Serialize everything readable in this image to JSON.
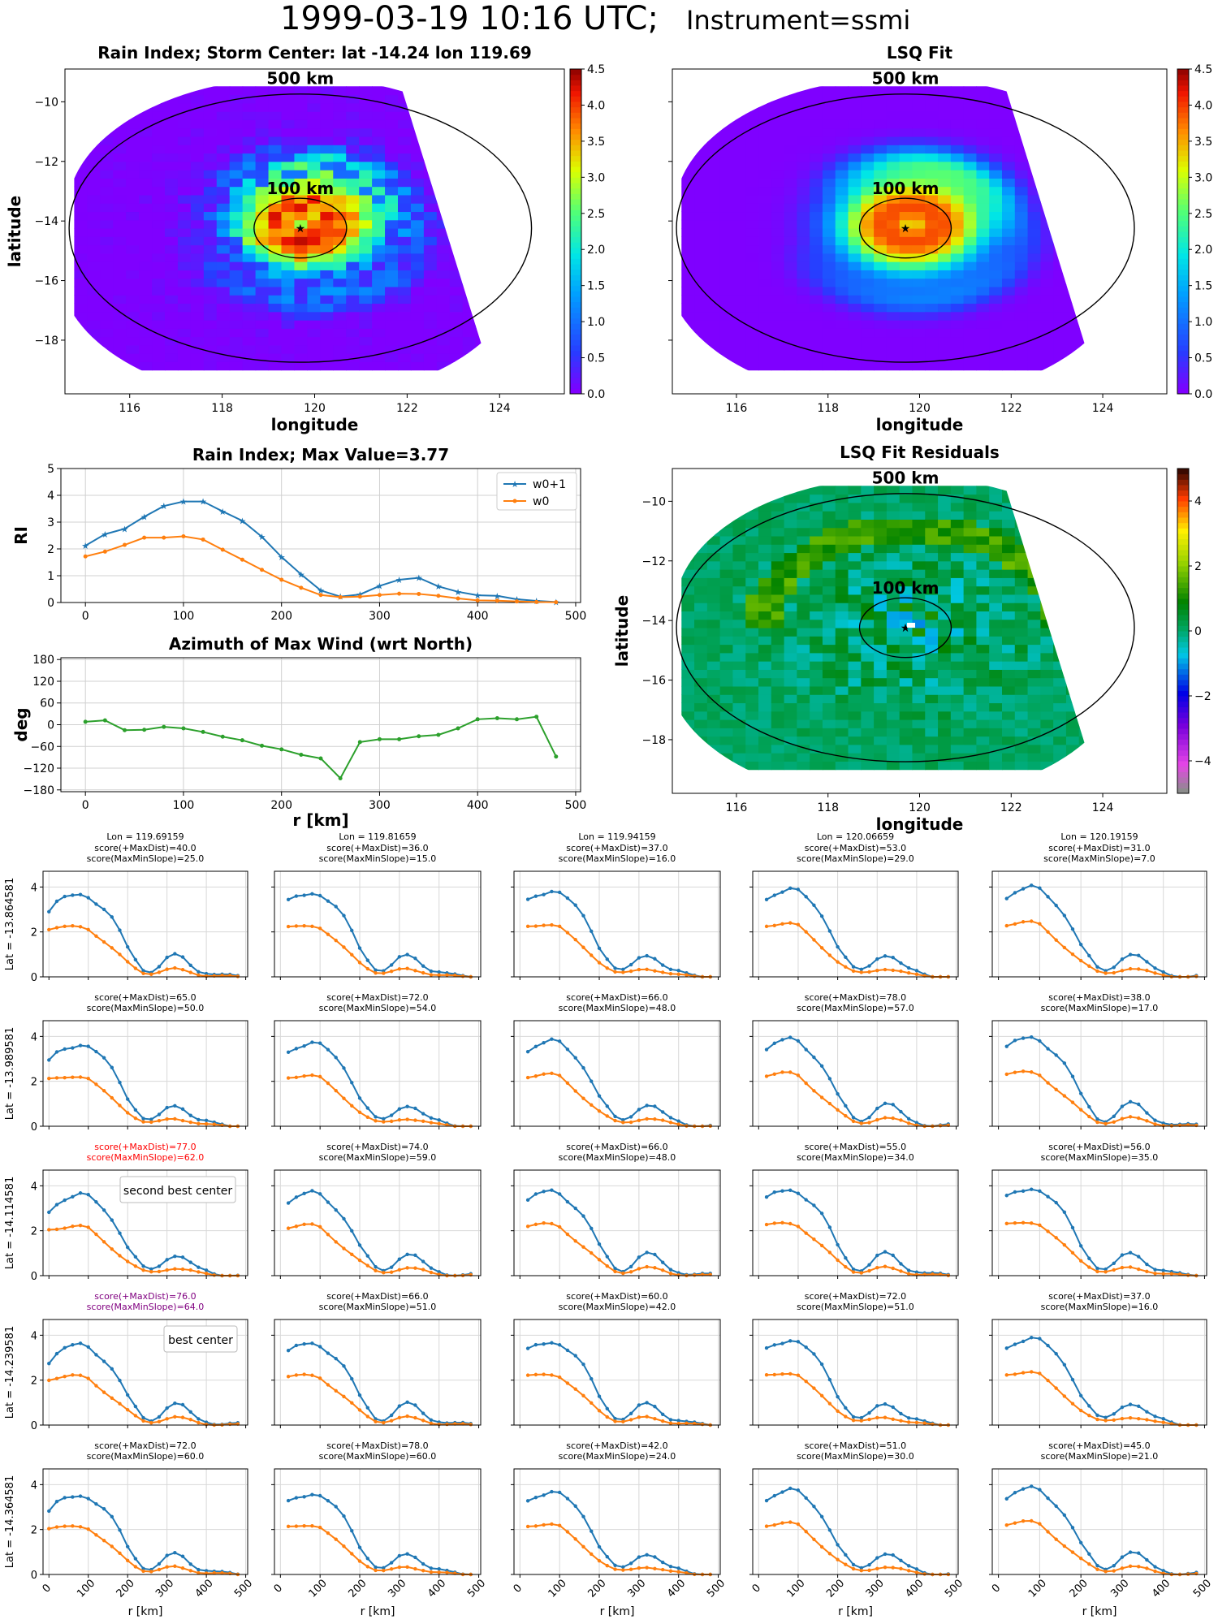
{
  "figure": {
    "title_main": "1999-03-19 10:16 UTC;",
    "title_instrument": "Instrument=ssmi"
  },
  "colors": {
    "series_w0p1": "#1f77b4",
    "series_w0": "#ff7f0e",
    "azimuth": "#2ca02c",
    "best_center": "#800080",
    "second_best_center": "#ff0000"
  },
  "maps": [
    {
      "title": "Rain Index; Storm Center: lat -14.24 lon 119.69",
      "xlabel": "longitude",
      "ylabel": "latitude",
      "colormap": "jet",
      "colorbar_range": [
        0,
        4.5
      ],
      "colorbar_ticks": [
        "0.0",
        "0.5",
        "1.0",
        "1.5",
        "2.0",
        "2.5",
        "3.0",
        "3.5",
        "4.0",
        "4.5"
      ],
      "xticks": [
        "116",
        "118",
        "120",
        "122",
        "124"
      ],
      "yticks": [
        "−10",
        "−12",
        "−14",
        "−16",
        "−18"
      ],
      "ring_labels": [
        "500 km",
        "100 km"
      ],
      "storm_center": {
        "lon": 119.69,
        "lat": -14.24
      }
    },
    {
      "title": "LSQ Fit",
      "xlabel": "longitude",
      "ylabel": "",
      "colormap": "jet",
      "colorbar_range": [
        0,
        4.5
      ],
      "colorbar_ticks": [
        "0.0",
        "0.5",
        "1.0",
        "1.5",
        "2.0",
        "2.5",
        "3.0",
        "3.5",
        "4.0",
        "4.5"
      ],
      "xticks": [
        "116",
        "118",
        "120",
        "122",
        "124"
      ],
      "yticks": [
        "",
        "",
        "",
        "",
        ""
      ],
      "ring_labels": [
        "500 km",
        "100 km"
      ]
    },
    {
      "title": "LSQ Fit Residuals",
      "xlabel": "longitude",
      "ylabel": "latitude",
      "colormap": "spectral",
      "colorbar_range": [
        -5,
        5
      ],
      "colorbar_ticks": [
        "4",
        "2",
        "0",
        "−2",
        "−4"
      ],
      "xticks": [
        "116",
        "118",
        "120",
        "122",
        "124"
      ],
      "yticks": [
        "−10",
        "−12",
        "−14",
        "−16",
        "−18"
      ],
      "ring_labels": [
        "500 km",
        "100 km"
      ]
    }
  ],
  "chart_data": [
    {
      "type": "line",
      "title": "Rain Index; Max Value=3.77",
      "xlabel": "",
      "ylabel": "RI",
      "xlim": [
        -25,
        505
      ],
      "ylim": [
        0,
        5
      ],
      "xticks": [
        "0",
        "100",
        "200",
        "300",
        "400",
        "500"
      ],
      "yticks": [
        "0",
        "1",
        "2",
        "3",
        "4",
        "5"
      ],
      "legend_placement": "top-right",
      "x": [
        0,
        20,
        40,
        60,
        80,
        100,
        120,
        140,
        160,
        180,
        200,
        220,
        240,
        260,
        280,
        300,
        320,
        340,
        360,
        380,
        400,
        420,
        440,
        460,
        480
      ],
      "series": [
        {
          "name": "w0+1",
          "values": [
            2.12,
            2.55,
            2.75,
            3.2,
            3.6,
            3.77,
            3.77,
            3.4,
            3.05,
            2.45,
            1.7,
            1.05,
            0.45,
            0.22,
            0.3,
            0.62,
            0.85,
            0.92,
            0.6,
            0.4,
            0.27,
            0.25,
            0.12,
            0.06,
            0.02
          ]
        },
        {
          "name": "w0",
          "values": [
            1.72,
            1.9,
            2.15,
            2.42,
            2.42,
            2.47,
            2.35,
            1.97,
            1.6,
            1.22,
            0.85,
            0.55,
            0.28,
            0.2,
            0.22,
            0.28,
            0.33,
            0.32,
            0.25,
            0.15,
            0.08,
            0.07,
            0.04,
            0.02,
            0.01
          ]
        }
      ]
    },
    {
      "type": "line",
      "title": "Azimuth of Max Wind (wrt North)",
      "xlabel": "r [km]",
      "ylabel": "deg",
      "xlim": [
        -25,
        505
      ],
      "ylim": [
        -185,
        185
      ],
      "xticks": [
        "0",
        "100",
        "200",
        "300",
        "400",
        "500"
      ],
      "yticks": [
        "180",
        "120",
        "60",
        "0",
        "−60",
        "−120",
        "−180"
      ],
      "x": [
        0,
        20,
        40,
        60,
        80,
        100,
        120,
        140,
        160,
        180,
        200,
        220,
        240,
        260,
        280,
        300,
        320,
        340,
        360,
        380,
        400,
        420,
        440,
        460,
        480
      ],
      "values": [
        8,
        12,
        -15,
        -14,
        -6,
        -10,
        -20,
        -33,
        -43,
        -58,
        -68,
        -83,
        -93,
        -148,
        -48,
        -40,
        -40,
        -32,
        -28,
        -10,
        15,
        18,
        15,
        22,
        -88
      ]
    },
    {
      "type": "line",
      "grid": {
        "rows": 5,
        "cols": 5
      },
      "xlabel": "r [km]",
      "ylim": [
        0,
        4.7
      ],
      "xlim": [
        -15,
        505
      ],
      "xticks": [
        "0",
        "100",
        "200",
        "300",
        "400",
        "500"
      ],
      "yticks": [
        "0",
        "2",
        "4"
      ],
      "column_headers": [
        "Lon = 119.69159",
        "Lon = 119.81659",
        "Lon = 119.94159",
        "Lon = 120.06659",
        "Lon = 120.19159"
      ],
      "row_labels": [
        "Lat = -13.864581",
        "Lat = -13.989581",
        "Lat = -14.114581",
        "Lat = -14.239581",
        "Lat = -14.364581"
      ],
      "scores": [
        [
          [
            "score(+MaxDist)=40.0",
            "score(MaxMinSlope)=25.0"
          ],
          [
            "score(+MaxDist)=36.0",
            "score(MaxMinSlope)=15.0"
          ],
          [
            "score(+MaxDist)=37.0",
            "score(MaxMinSlope)=16.0"
          ],
          [
            "score(+MaxDist)=53.0",
            "score(MaxMinSlope)=29.0"
          ],
          [
            "score(+MaxDist)=31.0",
            "score(MaxMinSlope)=7.0"
          ]
        ],
        [
          [
            "score(+MaxDist)=65.0",
            "score(MaxMinSlope)=50.0"
          ],
          [
            "score(+MaxDist)=72.0",
            "score(MaxMinSlope)=54.0"
          ],
          [
            "score(+MaxDist)=66.0",
            "score(MaxMinSlope)=48.0"
          ],
          [
            "score(+MaxDist)=78.0",
            "score(MaxMinSlope)=57.0"
          ],
          [
            "score(+MaxDist)=38.0",
            "score(MaxMinSlope)=17.0"
          ]
        ],
        [
          [
            "score(+MaxDist)=77.0",
            "score(MaxMinSlope)=62.0"
          ],
          [
            "score(+MaxDist)=74.0",
            "score(MaxMinSlope)=59.0"
          ],
          [
            "score(+MaxDist)=66.0",
            "score(MaxMinSlope)=48.0"
          ],
          [
            "score(+MaxDist)=55.0",
            "score(MaxMinSlope)=34.0"
          ],
          [
            "score(+MaxDist)=56.0",
            "score(MaxMinSlope)=35.0"
          ]
        ],
        [
          [
            "score(+MaxDist)=76.0",
            "score(MaxMinSlope)=64.0"
          ],
          [
            "score(+MaxDist)=66.0",
            "score(MaxMinSlope)=51.0"
          ],
          [
            "score(+MaxDist)=60.0",
            "score(MaxMinSlope)=42.0"
          ],
          [
            "score(+MaxDist)=72.0",
            "score(MaxMinSlope)=51.0"
          ],
          [
            "score(+MaxDist)=37.0",
            "score(MaxMinSlope)=16.0"
          ]
        ],
        [
          [
            "score(+MaxDist)=72.0",
            "score(MaxMinSlope)=60.0"
          ],
          [
            "score(+MaxDist)=78.0",
            "score(MaxMinSlope)=60.0"
          ],
          [
            "score(+MaxDist)=42.0",
            "score(MaxMinSlope)=24.0"
          ],
          [
            "score(+MaxDist)=51.0",
            "score(MaxMinSlope)=30.0"
          ],
          [
            "score(+MaxDist)=45.0",
            "score(MaxMinSlope)=21.0"
          ]
        ]
      ],
      "annotations": [
        {
          "row": 2,
          "col": 0,
          "text": "second best center",
          "color_key": "second_best_center"
        },
        {
          "row": 3,
          "col": 0,
          "text": "best center",
          "color_key": "best_center"
        }
      ],
      "x": [
        0,
        20,
        40,
        60,
        80,
        100,
        120,
        140,
        160,
        180,
        200,
        220,
        240,
        260,
        280,
        300,
        320,
        340,
        360,
        380,
        400,
        420,
        440,
        460,
        480
      ],
      "series": [
        {
          "name": "w0+1",
          "values": [
            2.9,
            3.3,
            3.5,
            3.6,
            3.7,
            3.6,
            3.3,
            3.0,
            2.6,
            2.0,
            1.3,
            0.8,
            0.35,
            0.25,
            0.45,
            0.8,
            0.95,
            0.85,
            0.55,
            0.3,
            0.2,
            0.1,
            0.05,
            0.03,
            0.02
          ]
        },
        {
          "name": "w0",
          "values": [
            2.1,
            2.15,
            2.2,
            2.25,
            2.25,
            2.15,
            1.85,
            1.55,
            1.25,
            0.95,
            0.65,
            0.4,
            0.2,
            0.15,
            0.2,
            0.3,
            0.35,
            0.3,
            0.22,
            0.12,
            0.07,
            0.04,
            0.02,
            0.01,
            0.0
          ]
        }
      ]
    }
  ]
}
